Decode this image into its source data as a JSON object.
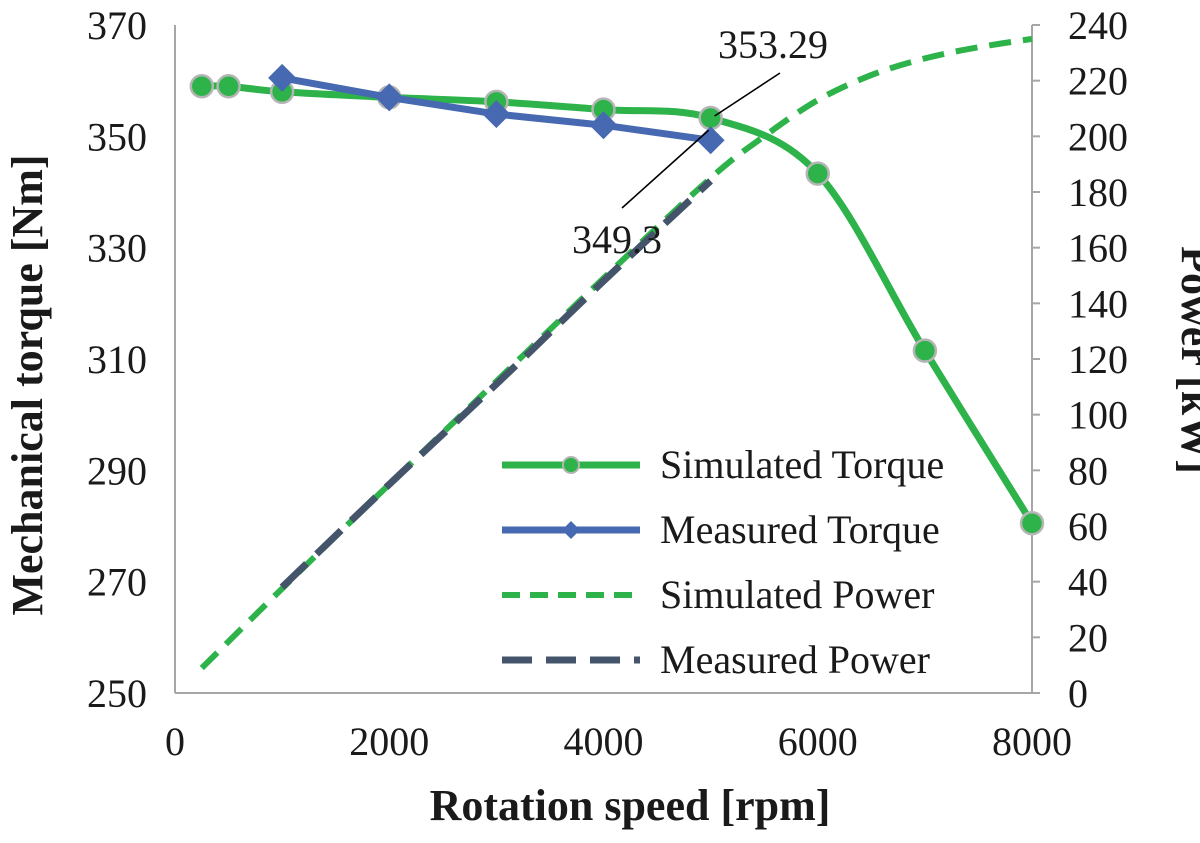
{
  "chart_data": {
    "type": "line",
    "title": "",
    "xlabel": "Rotation speed [rpm]",
    "ylabel": "Mechanical torque [Nm]",
    "y2label": "Power [kW]",
    "xlim": [
      0,
      8000
    ],
    "ylim": [
      250,
      370
    ],
    "y2lim": [
      0,
      240
    ],
    "x_ticks": [
      "0",
      "2000",
      "4000",
      "6000",
      "8000"
    ],
    "y_ticks": [
      "250",
      "270",
      "290",
      "310",
      "330",
      "350",
      "370"
    ],
    "y2_ticks": [
      "0",
      "20",
      "40",
      "60",
      "80",
      "100",
      "120",
      "140",
      "160",
      "180",
      "200",
      "220",
      "240"
    ],
    "grid": false,
    "legend_position": "center-right",
    "series": [
      {
        "name": "Simulated Torque",
        "axis": "left",
        "color": "#2db34a",
        "style": "solid-smooth",
        "marker": "circle",
        "x": [
          250,
          500,
          1000,
          2000,
          3000,
          4000,
          5000,
          6000,
          7000,
          8000
        ],
        "y": [
          359,
          359,
          358,
          357,
          356.2,
          354.8,
          353.29,
          343.3,
          311.5,
          280.5
        ]
      },
      {
        "name": "Measured Torque",
        "axis": "left",
        "color": "#4769b1",
        "style": "solid",
        "marker": "diamond",
        "x": [
          1000,
          2000,
          3000,
          4000,
          5000
        ],
        "y": [
          360.5,
          357,
          354,
          352,
          349.3
        ]
      },
      {
        "name": "Simulated Power",
        "axis": "right",
        "color": "#2db34a",
        "style": "dashed",
        "marker": "none",
        "x": [
          250,
          1000,
          2000,
          3000,
          4000,
          5000,
          5500,
          6000,
          6500,
          7000,
          7500,
          8000
        ],
        "y": [
          9,
          37.5,
          75,
          112,
          149,
          185,
          200,
          213,
          222,
          228,
          232,
          235
        ]
      },
      {
        "name": "Measured Power",
        "axis": "right",
        "color": "#44546a",
        "style": "long-dashed",
        "marker": "none",
        "x": [
          1000,
          2000,
          3000,
          4000,
          5000
        ],
        "y": [
          38,
          75,
          111,
          148,
          184
        ]
      }
    ],
    "annotations": [
      {
        "text": "353.29",
        "x": 5000,
        "y": 353.29
      },
      {
        "text": "349.3",
        "x": 5000,
        "y": 349.3
      }
    ]
  }
}
